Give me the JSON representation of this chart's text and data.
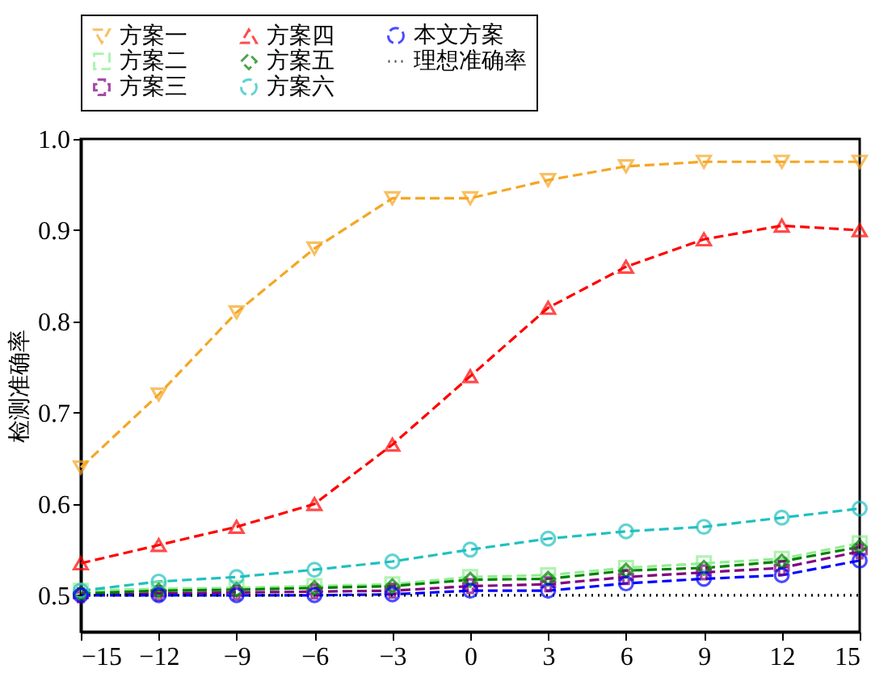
{
  "chart_data": {
    "type": "line",
    "ylabel": "检测准确率",
    "x": [
      -15,
      -12,
      -9,
      -6,
      -3,
      0,
      3,
      6,
      9,
      12,
      15
    ],
    "xlim": [
      -15,
      15
    ],
    "xticks": [
      -15,
      -12,
      -9,
      -6,
      -3,
      0,
      3,
      6,
      9,
      12,
      15
    ],
    "ylim": [
      0.46,
      1.0
    ],
    "yticks": [
      0.5,
      0.6,
      0.7,
      0.8,
      0.9,
      {
        "value": 1.0,
        "label": "1.0"
      }
    ],
    "grid": false,
    "legend": "top",
    "line_style": "dashed",
    "series": [
      {
        "name": "方案一",
        "color": "#f5a623",
        "marker": "triangle-down",
        "values": [
          0.64,
          0.72,
          0.81,
          0.88,
          0.935,
          0.935,
          0.955,
          0.97,
          0.975,
          0.975,
          0.975
        ]
      },
      {
        "name": "方案二",
        "color": "#90ee90",
        "marker": "square",
        "values": [
          0.505,
          0.507,
          0.508,
          0.51,
          0.512,
          0.52,
          0.522,
          0.53,
          0.535,
          0.54,
          0.557
        ]
      },
      {
        "name": "方案三",
        "color": "#800080",
        "marker": "cross",
        "values": [
          0.5,
          0.502,
          0.503,
          0.504,
          0.505,
          0.51,
          0.512,
          0.52,
          0.525,
          0.53,
          0.548
        ]
      },
      {
        "name": "方案四",
        "color": "#ff0000",
        "marker": "triangle",
        "values": [
          0.535,
          0.555,
          0.575,
          0.6,
          0.665,
          0.74,
          0.815,
          0.86,
          0.89,
          0.905,
          0.9
        ]
      },
      {
        "name": "方案五",
        "color": "#008000",
        "marker": "diamond",
        "values": [
          0.502,
          0.505,
          0.506,
          0.508,
          0.51,
          0.517,
          0.518,
          0.527,
          0.53,
          0.537,
          0.553
        ]
      },
      {
        "name": "方案六",
        "color": "#20c0c0",
        "marker": "circle",
        "values": [
          0.505,
          0.515,
          0.52,
          0.528,
          0.537,
          0.55,
          0.562,
          0.57,
          0.575,
          0.585,
          0.595
        ]
      },
      {
        "name": "本文方案",
        "color": "#0000ff",
        "marker": "circle",
        "values": [
          0.5,
          0.5,
          0.5,
          0.5,
          0.501,
          0.505,
          0.505,
          0.513,
          0.518,
          0.522,
          0.538
        ]
      },
      {
        "name": "理想准确率",
        "color": "#000000",
        "marker": "none",
        "line_style": "dotted",
        "values": [
          0.5,
          0.5,
          0.5,
          0.5,
          0.5,
          0.5,
          0.5,
          0.5,
          0.5,
          0.5,
          0.5
        ]
      }
    ]
  }
}
